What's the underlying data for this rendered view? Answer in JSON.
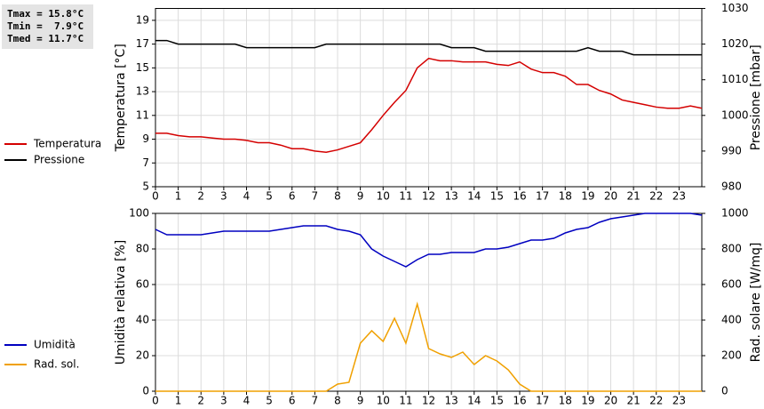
{
  "chart_data": [
    {
      "type": "line",
      "annotations": [
        "Tmax = 15.8°C",
        "Tmin =  7.9°C",
        "Tmed = 11.7°C"
      ],
      "y_label": "Temperatura [°C]",
      "y2_label": "Pressione [mbar]",
      "x": [
        0,
        0.5,
        1,
        1.5,
        2,
        2.5,
        3,
        3.5,
        4,
        4.5,
        5,
        5.5,
        6,
        6.5,
        7,
        7.5,
        8,
        8.5,
        9,
        9.5,
        10,
        10.5,
        11,
        11.5,
        12,
        12.5,
        13,
        13.5,
        14,
        14.5,
        15,
        15.5,
        16,
        16.5,
        17,
        17.5,
        18,
        18.5,
        19,
        19.5,
        20,
        20.5,
        21,
        21.5,
        22,
        22.5,
        23,
        23.5,
        24
      ],
      "xlim": [
        0,
        24
      ],
      "xticks": [
        0,
        1,
        2,
        3,
        4,
        5,
        6,
        7,
        8,
        9,
        10,
        11,
        12,
        13,
        14,
        15,
        16,
        17,
        18,
        19,
        20,
        21,
        22,
        23
      ],
      "ylim": [
        5,
        20
      ],
      "yticks": [
        5,
        7,
        9,
        11,
        13,
        15,
        17,
        19
      ],
      "y2lim": [
        980,
        1030
      ],
      "y2ticks": [
        980,
        990,
        1000,
        1010,
        1020,
        1030
      ],
      "grid": true,
      "legend": "left",
      "series": [
        {
          "name": "Temperatura",
          "color": "#d40000",
          "values": [
            9.5,
            9.5,
            9.3,
            9.2,
            9.2,
            9.1,
            9.0,
            9.0,
            8.9,
            8.7,
            8.7,
            8.5,
            8.2,
            8.2,
            8.0,
            7.9,
            8.1,
            8.4,
            8.7,
            9.8,
            11.0,
            12.1,
            13.1,
            15.0,
            15.8,
            15.6,
            15.6,
            15.5,
            15.5,
            15.5,
            15.3,
            15.2,
            15.5,
            14.9,
            14.6,
            14.6,
            14.3,
            13.6,
            13.6,
            13.1,
            12.8,
            12.3,
            12.1,
            11.9,
            11.7,
            11.6,
            11.6,
            11.8,
            11.6
          ]
        },
        {
          "name": "Pressione",
          "color": "#000000",
          "axis": "y2",
          "values": [
            1021,
            1021,
            1020,
            1020,
            1020,
            1020,
            1020,
            1020,
            1019,
            1019,
            1019,
            1019,
            1019,
            1019,
            1019,
            1020,
            1020,
            1020,
            1020,
            1020,
            1020,
            1020,
            1020,
            1020,
            1020,
            1020,
            1019,
            1019,
            1019,
            1018,
            1018,
            1018,
            1018,
            1018,
            1018,
            1018,
            1018,
            1018,
            1019,
            1018,
            1018,
            1018,
            1017,
            1017,
            1017,
            1017,
            1017,
            1017,
            1017
          ]
        }
      ]
    },
    {
      "type": "line",
      "y_label": "Umidità relativa [%]",
      "y2_label": "Rad. solare [W/mq]",
      "x": [
        0,
        0.5,
        1,
        1.5,
        2,
        2.5,
        3,
        3.5,
        4,
        4.5,
        5,
        5.5,
        6,
        6.5,
        7,
        7.5,
        8,
        8.5,
        9,
        9.5,
        10,
        10.5,
        11,
        11.5,
        12,
        12.5,
        13,
        13.5,
        14,
        14.5,
        15,
        15.5,
        16,
        16.5,
        17,
        17.5,
        18,
        18.5,
        19,
        19.5,
        20,
        20.5,
        21,
        21.5,
        22,
        22.5,
        23,
        23.5,
        24
      ],
      "xlim": [
        0,
        24
      ],
      "xticks": [
        0,
        1,
        2,
        3,
        4,
        5,
        6,
        7,
        8,
        9,
        10,
        11,
        12,
        13,
        14,
        15,
        16,
        17,
        18,
        19,
        20,
        21,
        22,
        23
      ],
      "ylim": [
        0,
        100
      ],
      "yticks": [
        0,
        20,
        40,
        60,
        80,
        100
      ],
      "y2lim": [
        0,
        1000
      ],
      "y2ticks": [
        0,
        200,
        400,
        600,
        800,
        1000
      ],
      "grid": true,
      "legend": "left",
      "series": [
        {
          "name": "Umidità",
          "color": "#0000c0",
          "values": [
            91,
            88,
            88,
            88,
            88,
            89,
            90,
            90,
            90,
            90,
            90,
            91,
            92,
            93,
            93,
            93,
            91,
            90,
            88,
            80,
            76,
            73,
            70,
            74,
            77,
            77,
            78,
            78,
            78,
            80,
            80,
            81,
            83,
            85,
            85,
            86,
            89,
            91,
            92,
            95,
            97,
            98,
            99,
            100,
            100,
            100,
            100,
            100,
            99
          ]
        },
        {
          "name": "Rad. sol.",
          "color": "#f0a000",
          "axis": "y2",
          "values": [
            0,
            0,
            0,
            0,
            0,
            0,
            0,
            0,
            0,
            0,
            0,
            0,
            0,
            0,
            0,
            0,
            40,
            50,
            270,
            340,
            280,
            410,
            270,
            490,
            240,
            210,
            190,
            220,
            150,
            200,
            170,
            120,
            40,
            0,
            0,
            0,
            0,
            0,
            0,
            0,
            0,
            0,
            0,
            0,
            0,
            0,
            0,
            0,
            0
          ]
        }
      ]
    }
  ]
}
